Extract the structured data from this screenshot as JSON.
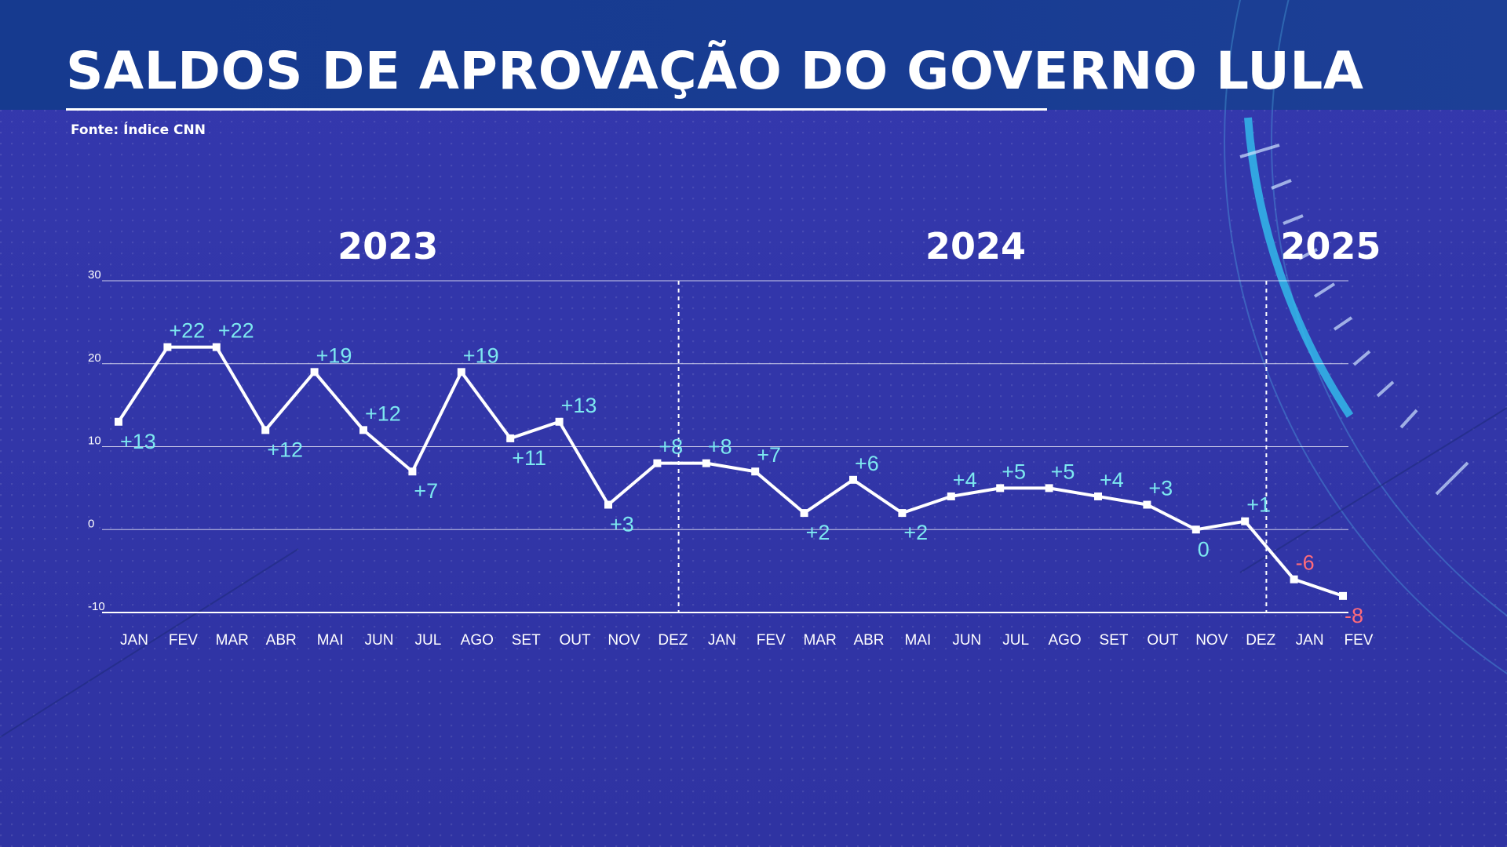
{
  "title": "SALDOS DE APROVAÇÃO DO GOVERNO LULA",
  "source": "Fonte: Índice CNN",
  "colors": {
    "background": "#3236a9",
    "line": "#ffffff",
    "positive_label": "#7de8f0",
    "negative_label": "#ff6b7a",
    "accent_arc": "#33b8ea"
  },
  "chart_data": {
    "type": "line",
    "title": "SALDOS DE APROVAÇÃO DO GOVERNO LULA",
    "xlabel": "",
    "ylabel": "",
    "ylim": [
      -10,
      30
    ],
    "yticks": [
      30,
      20,
      10,
      0,
      -10
    ],
    "grid": true,
    "year_groups": [
      {
        "label": "2023",
        "start_index": 0,
        "end_index": 11
      },
      {
        "label": "2024",
        "start_index": 12,
        "end_index": 23
      },
      {
        "label": "2025",
        "start_index": 24,
        "end_index": 25
      }
    ],
    "categories": [
      "JAN",
      "FEV",
      "MAR",
      "ABR",
      "MAI",
      "JUN",
      "JUL",
      "AGO",
      "SET",
      "OUT",
      "NOV",
      "DEZ",
      "JAN",
      "FEV",
      "MAR",
      "ABR",
      "MAI",
      "JUN",
      "JUL",
      "AGO",
      "SET",
      "OUT",
      "NOV",
      "DEZ",
      "JAN",
      "FEV"
    ],
    "series": [
      {
        "values": [
          13,
          22,
          22,
          12,
          19,
          12,
          7,
          19,
          11,
          13,
          3,
          8,
          8,
          7,
          2,
          6,
          2,
          4,
          5,
          5,
          4,
          3,
          0,
          1,
          -6,
          -8
        ],
        "labels": [
          "+13",
          "+22",
          "+22",
          "+12",
          "+19",
          "+12",
          "+7",
          "+19",
          "+11",
          "+13",
          "+3",
          "+8",
          "+8",
          "+7",
          "+2",
          "+6",
          "+2",
          "+4",
          "+5",
          "+5",
          "+4",
          "+3",
          "0",
          "+1",
          "-6",
          "-8"
        ]
      }
    ]
  }
}
